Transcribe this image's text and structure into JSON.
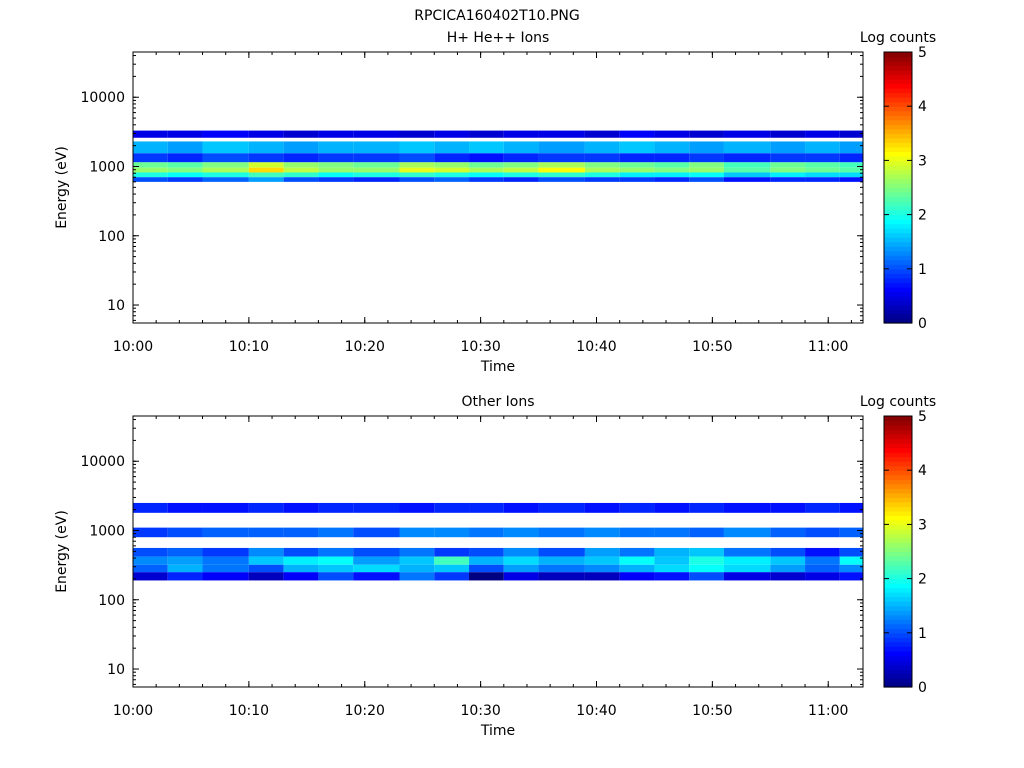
{
  "figure": {
    "title": "RPCICA160402T10.PNG"
  },
  "chart_data": [
    {
      "type": "heatmap",
      "title": "H+ He++ Ions",
      "xlabel": "Time",
      "ylabel": "Energy (eV)",
      "x_ticks": [
        "10:00",
        "10:10",
        "10:20",
        "10:30",
        "10:40",
        "10:50",
        "11:00"
      ],
      "xlim": [
        "10:00",
        "11:03"
      ],
      "y_scale": "log",
      "y_ticks": [
        "10",
        "100",
        "1000",
        "10000"
      ],
      "ylim": [
        5.5,
        45000
      ],
      "colorbar": {
        "label": "Log counts",
        "ticks": [
          "0",
          "1",
          "2",
          "3",
          "4",
          "5"
        ],
        "range": [
          0,
          5
        ],
        "colormap": "jet"
      },
      "time_bins": [
        "10:00",
        "10:03",
        "10:06",
        "10:10",
        "10:13",
        "10:16",
        "10:19",
        "10:23",
        "10:26",
        "10:29",
        "10:32",
        "10:35",
        "10:39",
        "10:42",
        "10:45",
        "10:48",
        "10:51",
        "10:55",
        "10:58",
        "11:01"
      ],
      "bands": [
        {
          "e_low": 1550,
          "e_high": 2300,
          "values": [
            1.5,
            1.4,
            1.6,
            1.5,
            1.4,
            1.5,
            1.5,
            1.6,
            1.5,
            1.6,
            1.5,
            1.4,
            1.5,
            1.6,
            1.5,
            1.4,
            1.5,
            1.4,
            1.5,
            1.4
          ]
        },
        {
          "e_low": 1150,
          "e_high": 1550,
          "values": [
            0.9,
            0.8,
            1.0,
            0.9,
            0.8,
            0.9,
            0.9,
            1.0,
            0.8,
            0.7,
            0.8,
            0.9,
            0.9,
            0.8,
            0.8,
            0.9,
            0.8,
            0.9,
            0.9,
            0.8
          ]
        },
        {
          "e_low": 960,
          "e_high": 1150,
          "values": [
            2.4,
            2.3,
            2.5,
            2.9,
            2.6,
            2.5,
            2.4,
            2.7,
            2.6,
            2.4,
            2.5,
            2.7,
            2.5,
            2.4,
            2.3,
            2.5,
            2.2,
            2.4,
            2.3,
            2.2
          ]
        },
        {
          "e_low": 820,
          "e_high": 960,
          "values": [
            2.6,
            2.5,
            2.7,
            3.3,
            2.8,
            2.6,
            2.6,
            3.0,
            2.9,
            2.7,
            2.8,
            3.1,
            2.7,
            2.6,
            2.5,
            2.6,
            2.3,
            2.5,
            2.4,
            2.3
          ]
        },
        {
          "e_low": 700,
          "e_high": 820,
          "values": [
            2.0,
            1.9,
            2.0,
            2.2,
            2.1,
            1.9,
            2.0,
            2.1,
            2.0,
            1.9,
            2.0,
            2.1,
            2.0,
            1.8,
            1.8,
            1.9,
            1.6,
            1.8,
            1.7,
            1.7
          ]
        },
        {
          "e_low": 600,
          "e_high": 700,
          "values": [
            1.0,
            0.9,
            1.1,
            1.4,
            1.0,
            0.9,
            0.8,
            1.0,
            1.1,
            0.9,
            0.8,
            1.0,
            0.9,
            0.9,
            0.8,
            1.0,
            0.7,
            0.8,
            0.8,
            0.7
          ]
        },
        {
          "e_low": 2600,
          "e_high": 3300,
          "values": [
            0.5,
            0.5,
            0.6,
            0.5,
            0.4,
            0.5,
            0.5,
            0.4,
            0.5,
            0.4,
            0.5,
            0.5,
            0.4,
            0.6,
            0.5,
            0.4,
            0.5,
            0.4,
            0.5,
            0.4
          ]
        }
      ]
    },
    {
      "type": "heatmap",
      "title": "Other Ions",
      "xlabel": "Time",
      "ylabel": "Energy (eV)",
      "x_ticks": [
        "10:00",
        "10:10",
        "10:20",
        "10:30",
        "10:40",
        "10:50",
        "11:00"
      ],
      "xlim": [
        "10:00",
        "11:03"
      ],
      "y_scale": "log",
      "y_ticks": [
        "10",
        "100",
        "1000",
        "10000"
      ],
      "ylim": [
        5.5,
        45000
      ],
      "colorbar": {
        "label": "Log counts",
        "ticks": [
          "0",
          "1",
          "2",
          "3",
          "4",
          "5"
        ],
        "range": [
          0,
          5
        ],
        "colormap": "jet"
      },
      "time_bins": [
        "10:00",
        "10:03",
        "10:06",
        "10:10",
        "10:13",
        "10:16",
        "10:19",
        "10:23",
        "10:26",
        "10:29",
        "10:32",
        "10:35",
        "10:39",
        "10:42",
        "10:45",
        "10:48",
        "10:51",
        "10:55",
        "10:58",
        "11:01"
      ],
      "bands": [
        {
          "e_low": 1800,
          "e_high": 2500,
          "values": [
            0.8,
            0.7,
            0.7,
            0.8,
            0.7,
            0.8,
            0.8,
            0.7,
            0.8,
            0.8,
            0.7,
            0.8,
            0.7,
            0.8,
            0.7,
            0.8,
            0.7,
            0.7,
            0.8,
            0.7
          ]
        },
        {
          "e_low": 800,
          "e_high": 1100,
          "values": [
            0.9,
            1.0,
            1.1,
            1.1,
            1.1,
            1.2,
            1.0,
            1.3,
            1.3,
            1.2,
            1.3,
            1.2,
            1.3,
            1.2,
            1.2,
            1.1,
            1.3,
            1.1,
            1.0,
            1.1
          ]
        },
        {
          "e_low": 420,
          "e_high": 560,
          "values": [
            1.0,
            1.1,
            0.9,
            1.3,
            1.0,
            1.2,
            1.0,
            1.2,
            0.9,
            1.0,
            1.3,
            1.0,
            1.4,
            1.2,
            1.5,
            1.6,
            1.2,
            1.0,
            0.7,
            1.0
          ]
        },
        {
          "e_low": 320,
          "e_high": 420,
          "values": [
            1.3,
            1.4,
            1.2,
            1.6,
            1.8,
            1.9,
            1.4,
            1.6,
            2.2,
            1.5,
            1.7,
            1.5,
            1.6,
            1.9,
            1.6,
            2.0,
            1.8,
            1.6,
            1.2,
            1.9
          ]
        },
        {
          "e_low": 250,
          "e_high": 320,
          "values": [
            1.1,
            1.5,
            1.2,
            1.0,
            1.5,
            1.6,
            1.7,
            1.5,
            1.6,
            1.0,
            1.4,
            1.2,
            1.3,
            1.5,
            1.7,
            1.9,
            1.7,
            1.4,
            1.1,
            1.3
          ]
        },
        {
          "e_low": 190,
          "e_high": 250,
          "values": [
            0.4,
            0.8,
            0.6,
            0.3,
            0.6,
            1.0,
            0.7,
            1.2,
            0.9,
            0.0,
            0.5,
            0.3,
            0.3,
            0.6,
            0.7,
            1.0,
            0.5,
            0.4,
            0.5,
            0.7
          ]
        }
      ]
    }
  ]
}
